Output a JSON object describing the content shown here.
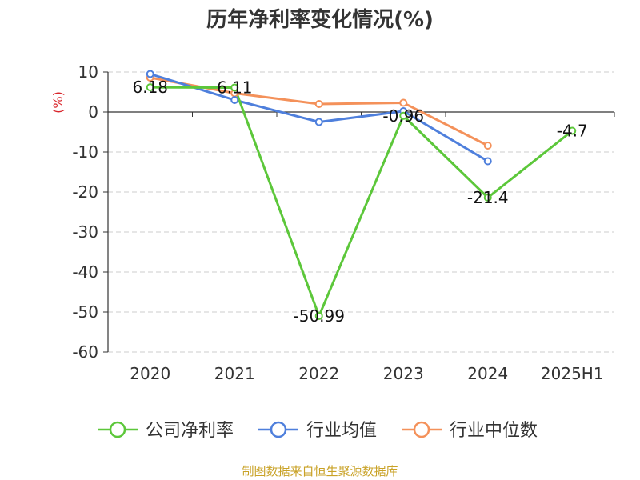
{
  "chart_data": {
    "type": "line",
    "title": "历年净利率变化情况(%)",
    "ylabel": "(%)",
    "categories": [
      "2020",
      "2021",
      "2022",
      "2023",
      "2024",
      "2025H1"
    ],
    "ylim": [
      -60,
      10
    ],
    "yticks": [
      10,
      0,
      -10,
      -20,
      -30,
      -40,
      -50,
      -60
    ],
    "grid": true,
    "legend_position": "bottom",
    "series": [
      {
        "name": "公司净利率",
        "color": "#5cc73a",
        "values": [
          6.18,
          6.11,
          -50.99,
          -0.96,
          -21.4,
          -4.7
        ],
        "labels": [
          "6.18",
          "6.11",
          "-50.99",
          "-0.96",
          "-21.4",
          "-4.7"
        ]
      },
      {
        "name": "行业均值",
        "color": "#4e7fdc",
        "values": [
          9.5,
          3.0,
          -2.5,
          0.2,
          -12.3,
          null
        ]
      },
      {
        "name": "行业中位数",
        "color": "#f4915a",
        "values": [
          8.6,
          4.7,
          2.0,
          2.3,
          -8.4,
          null
        ]
      }
    ]
  },
  "source": "制图数据来自恒生聚源数据库"
}
